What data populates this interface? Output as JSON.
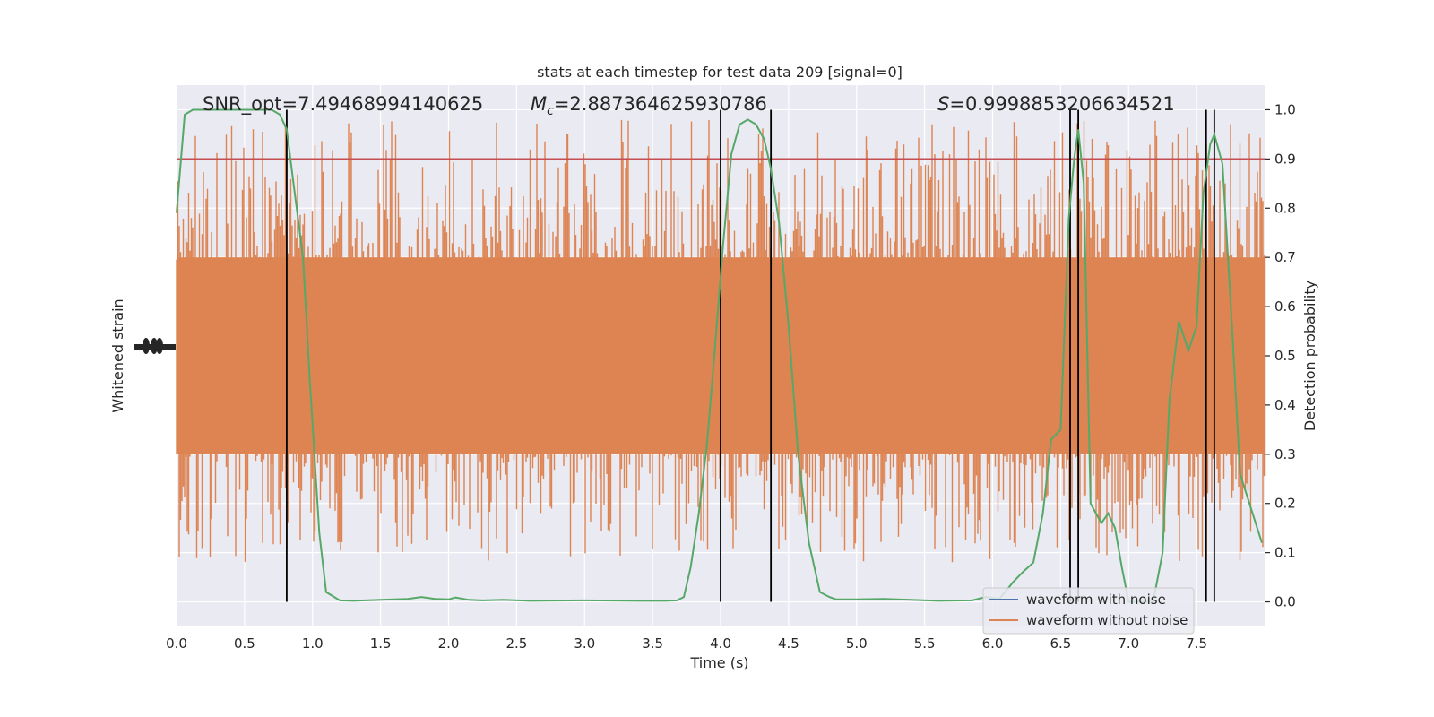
{
  "chart_data": {
    "type": "line",
    "title": "stats at each timestep for test data 209 [signal=0]",
    "xlabel": "Time (s)",
    "ylabel_left": "Whitened strain",
    "ylabel_right": "Detection probability",
    "xlim": [
      0.0,
      8.0
    ],
    "right_ylim": [
      -0.05,
      1.05
    ],
    "xticks": [
      0.0,
      0.5,
      1.0,
      1.5,
      2.0,
      2.5,
      3.0,
      3.5,
      4.0,
      4.5,
      5.0,
      5.5,
      6.0,
      6.5,
      7.0,
      7.5
    ],
    "xtick_labels": [
      "0.0",
      "0.5",
      "1.0",
      "1.5",
      "2.0",
      "2.5",
      "3.0",
      "3.5",
      "4.0",
      "4.5",
      "5.0",
      "5.5",
      "6.0",
      "6.5",
      "7.0",
      "7.5"
    ],
    "right_yticks": [
      0.0,
      0.1,
      0.2,
      0.3,
      0.4,
      0.5,
      0.6,
      0.7,
      0.8,
      0.9,
      1.0
    ],
    "right_ytick_labels": [
      "0.0",
      "0.1",
      "0.2",
      "0.3",
      "0.4",
      "0.5",
      "0.6",
      "0.7",
      "0.8",
      "0.9",
      "1.0"
    ],
    "grid": true,
    "annotations": {
      "snr": "SNR_opt=7.49468994140625",
      "mc_prefix": "M",
      "mc_sub": "c",
      "mc_value": "=2.887364625930786",
      "s_prefix": "S",
      "s_value": "=0.9998853206634521"
    },
    "threshold": {
      "value": 0.9,
      "color": "#c44e52"
    },
    "vertical_lines_x": [
      0.81,
      4.0,
      4.37,
      6.57,
      6.63,
      7.57,
      7.63
    ],
    "legend": {
      "placement": "lower right",
      "items": [
        {
          "label": "waveform with noise",
          "color": "#4c72b0"
        },
        {
          "label": "waveform without noise",
          "color": "#dd8452"
        }
      ]
    },
    "strain_band": {
      "color": "#dd8452",
      "dense_range_prob_units": [
        0.3,
        0.7
      ],
      "spike_range_prob_units": [
        0.08,
        0.98
      ]
    },
    "probability_series": {
      "name": "",
      "color": "#55a868",
      "x": [
        0.0,
        0.06,
        0.12,
        0.2,
        0.3,
        0.4,
        0.5,
        0.6,
        0.7,
        0.76,
        0.81,
        0.86,
        0.93,
        0.98,
        1.05,
        1.1,
        1.2,
        1.3,
        1.5,
        1.7,
        1.8,
        1.9,
        2.0,
        2.05,
        2.15,
        2.25,
        2.4,
        2.6,
        3.0,
        3.4,
        3.6,
        3.68,
        3.73,
        3.78,
        3.84,
        3.9,
        3.96,
        4.02,
        4.08,
        4.14,
        4.2,
        4.26,
        4.32,
        4.37,
        4.43,
        4.5,
        4.57,
        4.65,
        4.73,
        4.8,
        4.85,
        4.9,
        5.0,
        5.2,
        5.4,
        5.6,
        5.85,
        5.95,
        6.05,
        6.15,
        6.22,
        6.3,
        6.37,
        6.43,
        6.5,
        6.56,
        6.6,
        6.63,
        6.67,
        6.72,
        6.8,
        6.85,
        6.9,
        6.95,
        7.0,
        7.05,
        7.1,
        7.18,
        7.25,
        7.3,
        7.37,
        7.44,
        7.5,
        7.55,
        7.6,
        7.63,
        7.69,
        7.76,
        7.82,
        7.9,
        7.98
      ],
      "y": [
        0.79,
        0.99,
        1.0,
        1.0,
        1.0,
        1.0,
        1.0,
        1.0,
        1.0,
        0.99,
        0.96,
        0.85,
        0.7,
        0.45,
        0.14,
        0.02,
        0.003,
        0.002,
        0.004,
        0.006,
        0.01,
        0.006,
        0.005,
        0.009,
        0.004,
        0.003,
        0.004,
        0.002,
        0.003,
        0.002,
        0.002,
        0.003,
        0.01,
        0.07,
        0.18,
        0.32,
        0.52,
        0.73,
        0.91,
        0.97,
        0.98,
        0.97,
        0.94,
        0.88,
        0.77,
        0.56,
        0.3,
        0.12,
        0.02,
        0.01,
        0.005,
        0.005,
        0.005,
        0.006,
        0.004,
        0.002,
        0.003,
        0.01,
        0.006,
        0.04,
        0.06,
        0.08,
        0.18,
        0.33,
        0.35,
        0.78,
        0.9,
        0.96,
        0.85,
        0.2,
        0.16,
        0.18,
        0.15,
        0.07,
        0.0,
        0.0,
        0.0,
        0.0,
        0.1,
        0.41,
        0.57,
        0.51,
        0.56,
        0.83,
        0.93,
        0.95,
        0.89,
        0.56,
        0.26,
        0.19,
        0.12
      ]
    }
  }
}
